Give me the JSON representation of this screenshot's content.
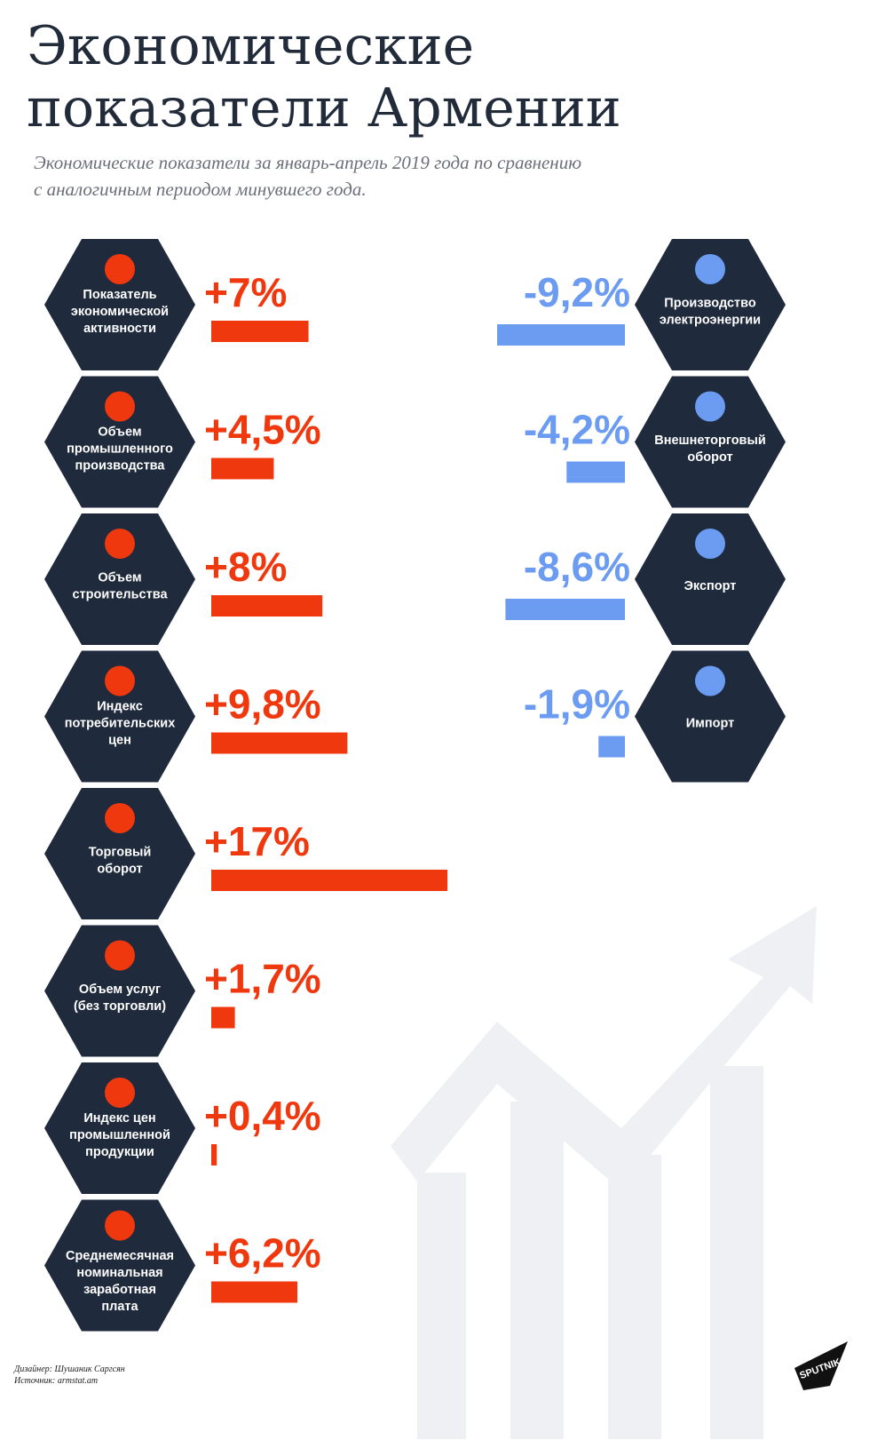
{
  "title": [
    "Экономические",
    "показатели Армении"
  ],
  "subtitle": [
    "Экономические показатели за январь-апрель 2019 года по сравнению",
    "с аналогичным периодом минувшего года."
  ],
  "left": [
    {
      "label": [
        "Показатель",
        "экономической",
        "активности"
      ],
      "value": 7,
      "value_label": "+7%"
    },
    {
      "label": [
        "Объем",
        "промышленного",
        "производства"
      ],
      "value": 4.5,
      "value_label": "+4,5%"
    },
    {
      "label": [
        "Объем",
        "строительства"
      ],
      "value": 8,
      "value_label": "+8%"
    },
    {
      "label": [
        "Индекс",
        "потребительских",
        "цен"
      ],
      "value": 9.8,
      "value_label": "+9,8%"
    },
    {
      "label": [
        "Торговый",
        "оборот"
      ],
      "value": 17,
      "value_label": "+17%"
    },
    {
      "label": [
        "Объем услуг",
        "(без торговли)"
      ],
      "value": 1.7,
      "value_label": "+1,7%"
    },
    {
      "label": [
        "Индекс цен",
        "промышленной",
        "продукции"
      ],
      "value": 0.4,
      "value_label": "+0,4%"
    },
    {
      "label": [
        "Среднемесячная",
        "номинальная",
        "заработная",
        "плата"
      ],
      "value": 6.2,
      "value_label": "+6,2%"
    }
  ],
  "right": [
    {
      "label": [
        "Производство",
        "электроэнергии"
      ],
      "value": -9.2,
      "value_label": "-9,2%"
    },
    {
      "label": [
        "Внешнеторговый",
        "оборот"
      ],
      "value": -4.2,
      "value_label": "-4,2%"
    },
    {
      "label": [
        "Экспорт"
      ],
      "value": -8.6,
      "value_label": "-8,6%"
    },
    {
      "label": [
        "Импорт"
      ],
      "value": -1.9,
      "value_label": "-1,9%"
    }
  ],
  "credits": [
    "Дизайнер: Шушаник Саргсян",
    "Источник: armstat.am"
  ],
  "logo": "SPUTNIK"
}
